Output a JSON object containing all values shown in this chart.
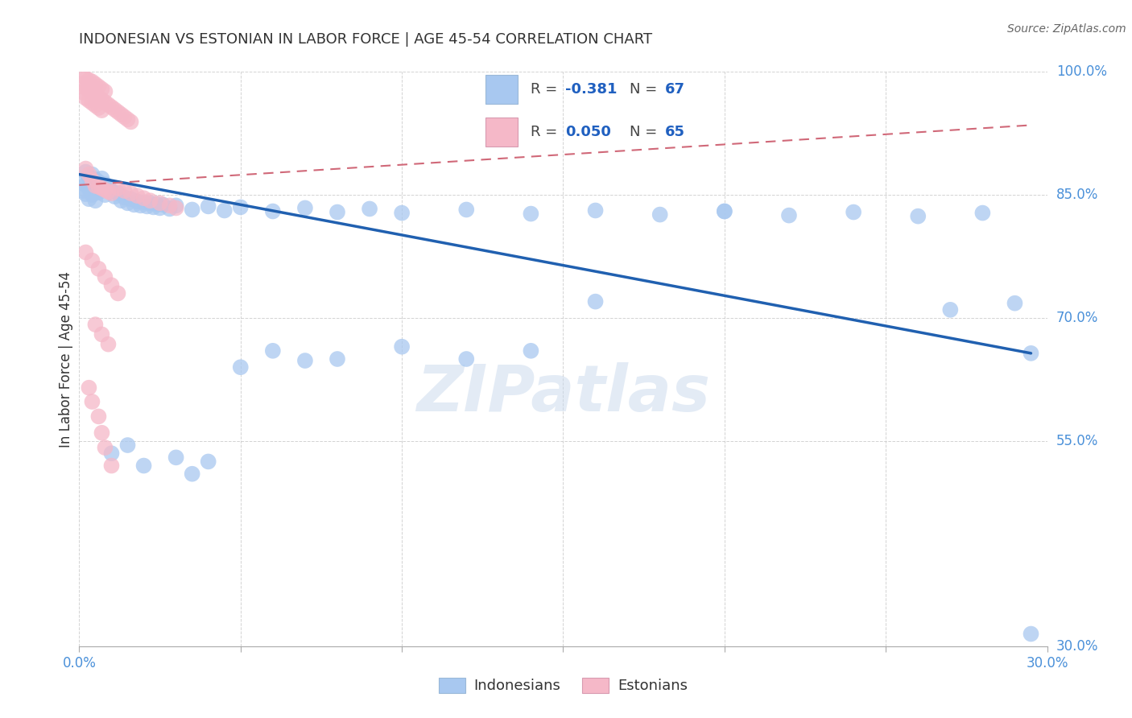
{
  "title": "INDONESIAN VS ESTONIAN IN LABOR FORCE | AGE 45-54 CORRELATION CHART",
  "source": "Source: ZipAtlas.com",
  "ylabel": "In Labor Force | Age 45-54",
  "xlim": [
    0.0,
    0.3
  ],
  "ylim": [
    0.3,
    1.0
  ],
  "legend_label_blue": "Indonesians",
  "legend_label_pink": "Estonians",
  "blue_color": "#a8c8f0",
  "pink_color": "#f5b8c8",
  "blue_line_color": "#2060b0",
  "pink_line_color": "#d06878",
  "blue_trend_x0": 0.0,
  "blue_trend_y0": 0.875,
  "blue_trend_x1": 0.295,
  "blue_trend_y1": 0.657,
  "pink_trend_x0": 0.0,
  "pink_trend_y0": 0.862,
  "pink_trend_x1": 0.295,
  "pink_trend_y1": 0.935,
  "blue_points": [
    [
      0.001,
      0.868
    ],
    [
      0.001,
      0.855
    ],
    [
      0.002,
      0.878
    ],
    [
      0.002,
      0.862
    ],
    [
      0.002,
      0.851
    ],
    [
      0.003,
      0.872
    ],
    [
      0.003,
      0.858
    ],
    [
      0.003,
      0.845
    ],
    [
      0.004,
      0.875
    ],
    [
      0.004,
      0.862
    ],
    [
      0.004,
      0.85
    ],
    [
      0.005,
      0.869
    ],
    [
      0.005,
      0.856
    ],
    [
      0.005,
      0.843
    ],
    [
      0.006,
      0.866
    ],
    [
      0.006,
      0.853
    ],
    [
      0.007,
      0.87
    ],
    [
      0.007,
      0.857
    ],
    [
      0.008,
      0.863
    ],
    [
      0.008,
      0.85
    ],
    [
      0.009,
      0.86
    ],
    [
      0.01,
      0.855
    ],
    [
      0.011,
      0.848
    ],
    [
      0.012,
      0.852
    ],
    [
      0.013,
      0.843
    ],
    [
      0.014,
      0.847
    ],
    [
      0.015,
      0.84
    ],
    [
      0.016,
      0.845
    ],
    [
      0.017,
      0.838
    ],
    [
      0.018,
      0.842
    ],
    [
      0.019,
      0.837
    ],
    [
      0.02,
      0.841
    ],
    [
      0.021,
      0.836
    ],
    [
      0.022,
      0.84
    ],
    [
      0.023,
      0.835
    ],
    [
      0.024,
      0.839
    ],
    [
      0.025,
      0.834
    ],
    [
      0.026,
      0.838
    ],
    [
      0.028,
      0.833
    ],
    [
      0.03,
      0.837
    ],
    [
      0.035,
      0.832
    ],
    [
      0.04,
      0.836
    ],
    [
      0.045,
      0.831
    ],
    [
      0.05,
      0.835
    ],
    [
      0.06,
      0.83
    ],
    [
      0.07,
      0.834
    ],
    [
      0.08,
      0.829
    ],
    [
      0.09,
      0.833
    ],
    [
      0.1,
      0.828
    ],
    [
      0.12,
      0.832
    ],
    [
      0.14,
      0.827
    ],
    [
      0.16,
      0.831
    ],
    [
      0.18,
      0.826
    ],
    [
      0.2,
      0.83
    ],
    [
      0.22,
      0.825
    ],
    [
      0.24,
      0.829
    ],
    [
      0.26,
      0.824
    ],
    [
      0.28,
      0.828
    ],
    [
      0.295,
      0.657
    ],
    [
      0.01,
      0.535
    ],
    [
      0.015,
      0.545
    ],
    [
      0.02,
      0.52
    ],
    [
      0.03,
      0.53
    ],
    [
      0.035,
      0.51
    ],
    [
      0.04,
      0.525
    ],
    [
      0.1,
      0.665
    ],
    [
      0.12,
      0.65
    ],
    [
      0.14,
      0.66
    ],
    [
      0.16,
      0.72
    ],
    [
      0.2,
      0.83
    ],
    [
      0.27,
      0.71
    ],
    [
      0.29,
      0.718
    ],
    [
      0.295,
      0.315
    ],
    [
      0.06,
      0.66
    ],
    [
      0.07,
      0.648
    ],
    [
      0.08,
      0.65
    ],
    [
      0.05,
      0.64
    ]
  ],
  "pink_points": [
    [
      0.001,
      0.995
    ],
    [
      0.001,
      0.985
    ],
    [
      0.001,
      0.975
    ],
    [
      0.002,
      0.992
    ],
    [
      0.002,
      0.98
    ],
    [
      0.002,
      0.968
    ],
    [
      0.003,
      0.99
    ],
    [
      0.003,
      0.978
    ],
    [
      0.003,
      0.965
    ],
    [
      0.004,
      0.988
    ],
    [
      0.004,
      0.975
    ],
    [
      0.004,
      0.962
    ],
    [
      0.005,
      0.985
    ],
    [
      0.005,
      0.972
    ],
    [
      0.005,
      0.959
    ],
    [
      0.006,
      0.982
    ],
    [
      0.006,
      0.969
    ],
    [
      0.006,
      0.956
    ],
    [
      0.007,
      0.979
    ],
    [
      0.007,
      0.966
    ],
    [
      0.007,
      0.953
    ],
    [
      0.008,
      0.976
    ],
    [
      0.008,
      0.963
    ],
    [
      0.009,
      0.96
    ],
    [
      0.01,
      0.957
    ],
    [
      0.011,
      0.954
    ],
    [
      0.012,
      0.951
    ],
    [
      0.013,
      0.948
    ],
    [
      0.014,
      0.945
    ],
    [
      0.015,
      0.942
    ],
    [
      0.016,
      0.939
    ],
    [
      0.002,
      0.882
    ],
    [
      0.003,
      0.875
    ],
    [
      0.004,
      0.868
    ],
    [
      0.005,
      0.861
    ],
    [
      0.006,
      0.86
    ],
    [
      0.007,
      0.858
    ],
    [
      0.008,
      0.856
    ],
    [
      0.009,
      0.854
    ],
    [
      0.01,
      0.852
    ],
    [
      0.012,
      0.858
    ],
    [
      0.014,
      0.855
    ],
    [
      0.016,
      0.852
    ],
    [
      0.018,
      0.849
    ],
    [
      0.02,
      0.846
    ],
    [
      0.022,
      0.843
    ],
    [
      0.025,
      0.84
    ],
    [
      0.028,
      0.837
    ],
    [
      0.03,
      0.834
    ],
    [
      0.002,
      0.78
    ],
    [
      0.004,
      0.77
    ],
    [
      0.006,
      0.76
    ],
    [
      0.008,
      0.75
    ],
    [
      0.01,
      0.74
    ],
    [
      0.012,
      0.73
    ],
    [
      0.005,
      0.692
    ],
    [
      0.007,
      0.68
    ],
    [
      0.009,
      0.668
    ],
    [
      0.003,
      0.615
    ],
    [
      0.004,
      0.598
    ],
    [
      0.006,
      0.58
    ],
    [
      0.007,
      0.56
    ],
    [
      0.008,
      0.542
    ],
    [
      0.01,
      0.52
    ]
  ],
  "watermark": "ZIPatlas",
  "background_color": "#ffffff",
  "grid_color": "#c8c8c8",
  "axis_color": "#4a90d9",
  "text_color": "#333333"
}
